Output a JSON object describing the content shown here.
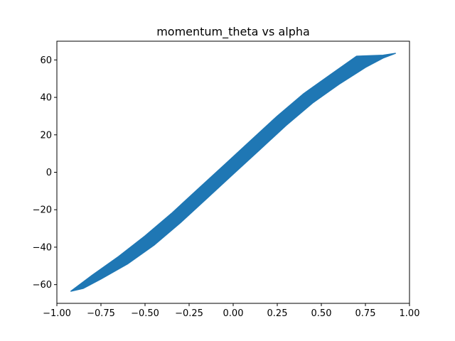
{
  "chart_data": {
    "type": "line",
    "title": "momentum_theta vs alpha",
    "xlabel": "",
    "ylabel": "",
    "xlim": [
      -1.0,
      1.0
    ],
    "ylim": [
      -70,
      70
    ],
    "x_ticks": [
      -1.0,
      -0.75,
      -0.5,
      -0.25,
      0.0,
      0.25,
      0.5,
      0.75,
      1.0
    ],
    "x_tick_labels": [
      "−1.00",
      "−0.75",
      "−0.50",
      "−0.25",
      "0.00",
      "0.25",
      "0.50",
      "0.75",
      "1.00"
    ],
    "y_ticks": [
      -60,
      -40,
      -20,
      0,
      20,
      40,
      60
    ],
    "y_tick_labels": [
      "−60",
      "−40",
      "−20",
      "0",
      "20",
      "40",
      "60"
    ],
    "grid": false,
    "legend": "none",
    "series": [
      {
        "color": "#1f77b4",
        "x": [
          -0.92,
          -0.85,
          -0.75,
          -0.6,
          -0.45,
          -0.3,
          -0.15,
          0.0,
          0.15,
          0.3,
          0.45,
          0.6,
          0.75,
          0.85,
          0.92,
          0.85,
          0.7,
          0.55,
          0.4,
          0.25,
          0.1,
          -0.05,
          -0.2,
          -0.35,
          -0.5,
          -0.65,
          -0.8,
          -0.92
        ],
        "y": [
          -63.5,
          -62,
          -57,
          -49,
          -39,
          -27,
          -14,
          -1,
          12,
          25,
          37,
          47,
          56,
          61,
          63.5,
          62.5,
          62,
          52,
          42,
          30,
          17,
          4,
          -9,
          -22,
          -34,
          -45,
          -55,
          -63.5
        ]
      }
    ]
  }
}
